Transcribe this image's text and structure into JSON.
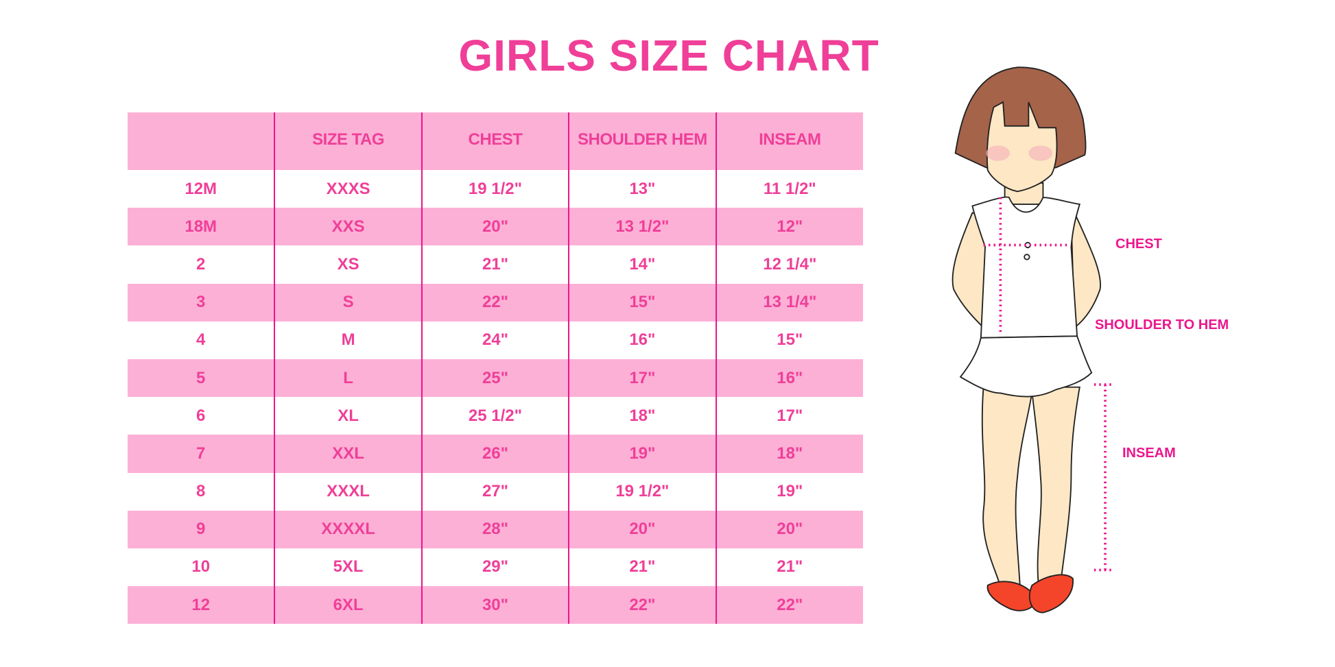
{
  "title": "GIRLS SIZE CHART",
  "table": {
    "headers": [
      "",
      "SIZE TAG",
      "CHEST",
      "SHOULDER HEM",
      "INSEAM"
    ],
    "rows": [
      [
        "12M",
        "XXXS",
        "19 1/2\"",
        "13\"",
        "11 1/2\""
      ],
      [
        "18M",
        "XXS",
        "20\"",
        "13 1/2\"",
        "12\""
      ],
      [
        "2",
        "XS",
        "21\"",
        "14\"",
        "12 1/4\""
      ],
      [
        "3",
        "S",
        "22\"",
        "15\"",
        "13 1/4\""
      ],
      [
        "4",
        "M",
        "24\"",
        "16\"",
        "15\""
      ],
      [
        "5",
        "L",
        "25\"",
        "17\"",
        "16\""
      ],
      [
        "6",
        "XL",
        "25 1/2\"",
        "18\"",
        "17\""
      ],
      [
        "7",
        "XXL",
        "26\"",
        "19\"",
        "18\""
      ],
      [
        "8",
        "XXXL",
        "27\"",
        "19 1/2\"",
        "19\""
      ],
      [
        "9",
        "XXXXL",
        "28\"",
        "20\"",
        "20\""
      ],
      [
        "10",
        "5XL",
        "29\"",
        "21\"",
        "21\""
      ],
      [
        "12",
        "6XL",
        "30\"",
        "22\"",
        "22\""
      ]
    ]
  },
  "figure": {
    "labels": {
      "chest": "CHEST",
      "shoulder_to_hem": "SHOULDER TO HEM",
      "inseam": "INSEAM"
    }
  },
  "colors": {
    "accent": "#ef3f98",
    "header_bg": "#fdb0d6",
    "divider": "#e8168c",
    "hair": "#a5634a",
    "skin": "#fde7c5",
    "shoes": "#f4452a"
  }
}
